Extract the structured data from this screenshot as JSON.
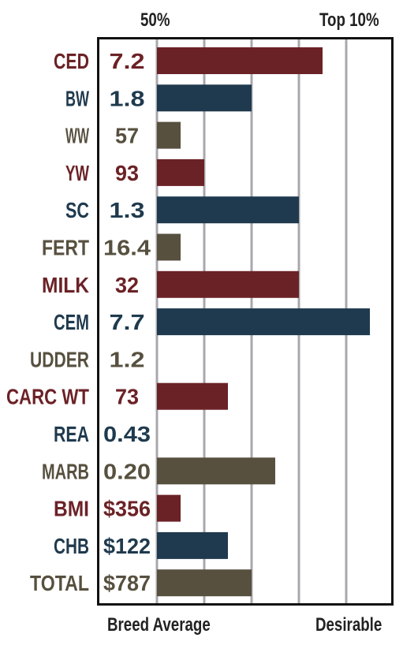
{
  "header": {
    "left": "50%",
    "right": "Top 10%"
  },
  "footer": {
    "left": "Breed Average",
    "right": "Desirable"
  },
  "colors": {
    "red": "#6b2226",
    "navy": "#1f3a4e",
    "olive": "#57503f",
    "grid": "#a9a7ad"
  },
  "chart_data": {
    "type": "bar",
    "orientation": "horizontal",
    "grid": true,
    "rows": [
      {
        "label": "CED",
        "value": "7.2",
        "bar": 3.5,
        "color": "red"
      },
      {
        "label": "BW",
        "value": "1.8",
        "bar": 2.0,
        "color": "navy"
      },
      {
        "label": "WW",
        "value": "57",
        "bar": 0.5,
        "color": "olive"
      },
      {
        "label": "YW",
        "value": "93",
        "bar": 1.0,
        "color": "red"
      },
      {
        "label": "SC",
        "value": "1.3",
        "bar": 3.0,
        "color": "navy"
      },
      {
        "label": "FERT",
        "value": "16.4",
        "bar": 0.5,
        "color": "olive"
      },
      {
        "label": "MILK",
        "value": "32",
        "bar": 3.0,
        "color": "red"
      },
      {
        "label": "CEM",
        "value": "7.7",
        "bar": 4.5,
        "color": "navy"
      },
      {
        "label": "UDDER",
        "value": "1.2",
        "bar": 0,
        "color": "olive"
      },
      {
        "label": "CARC WT",
        "value": "73",
        "bar": 1.5,
        "color": "red"
      },
      {
        "label": "REA",
        "value": "0.43",
        "bar": 0,
        "color": "navy"
      },
      {
        "label": "MARB",
        "value": "0.20",
        "bar": 2.5,
        "color": "olive"
      },
      {
        "label": "BMI",
        "value": "$356",
        "bar": 0.5,
        "color": "red"
      },
      {
        "label": "CHB",
        "value": "$122",
        "bar": 1.5,
        "color": "navy"
      },
      {
        "label": "TOTAL",
        "value": "$787",
        "bar": 2.0,
        "color": "olive"
      }
    ]
  }
}
